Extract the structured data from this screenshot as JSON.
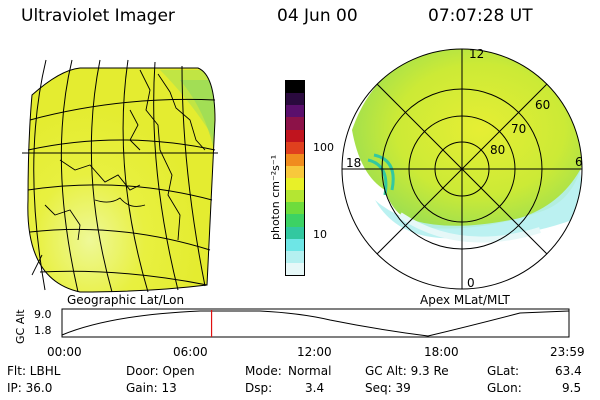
{
  "header": {
    "title": "Ultraviolet Imager",
    "date": "04 Jun 00",
    "time": "07:07:28 UT"
  },
  "left_map": {
    "caption": "Geographic Lat/Lon"
  },
  "colorbar": {
    "unit_label": "photon cm⁻²s⁻¹",
    "ticks": [
      "100",
      "10"
    ],
    "colors": [
      "#000000",
      "#2a0a3e",
      "#5a0f6c",
      "#8c1248",
      "#c0141e",
      "#e0401e",
      "#f08c1e",
      "#f8c83c",
      "#e8f028",
      "#b4e632",
      "#6edc3c",
      "#3cd264",
      "#32c8a0",
      "#6ee6e6",
      "#b4f0f0",
      "#e6f8f8"
    ]
  },
  "polar_map": {
    "caption": "Apex MLat/MLT",
    "mlt_labels": {
      "top": "12",
      "left": "18",
      "right": "6",
      "bottom": "0"
    },
    "lat_labels": [
      "60",
      "70",
      "80"
    ]
  },
  "altitude_plot": {
    "ylabel": "GC Alt",
    "yticks": [
      "9.0",
      "1.8"
    ],
    "xticks": [
      "00:00",
      "06:00",
      "12:00",
      "18:00",
      "23:59"
    ],
    "current_time_fraction": 0.295
  },
  "status": {
    "filter": "Flt: LBHL",
    "ip": "IP: 36.0",
    "door": "Door: Open",
    "gain": "Gain: 13",
    "mode_label": "Mode:",
    "mode_value": "Normal",
    "dsp_label": "Dsp:",
    "dsp_value": "3.4",
    "gc_alt": "GC Alt: 9.3 Re",
    "seq": "Seq: 39",
    "glat_label": "GLat:",
    "glat_value": "63.4",
    "glon_label": "GLon:",
    "glon_value": "9.5"
  }
}
